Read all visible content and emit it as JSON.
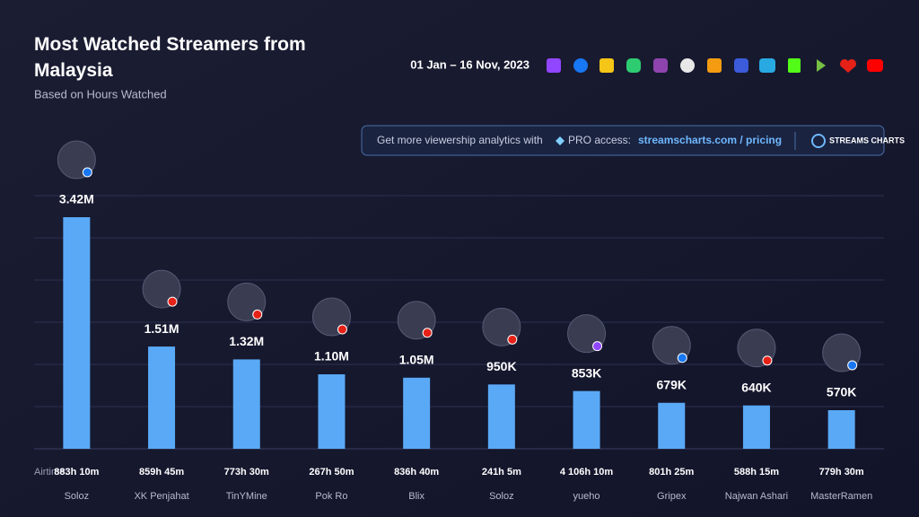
{
  "chart_data": {
    "type": "bar",
    "title": "Most Watched Streamers from Malaysia",
    "subtitle": "Based on Hours Watched",
    "date_range": "01 Jan – 16 Nov, 2023",
    "banner": {
      "text": "Get more viewership analytics with",
      "pro": "PRO access:",
      "link": "streamscharts.com / pricing",
      "logo": "STREAMS CHARTS"
    },
    "categories": [
      "Soloz",
      "XK Penjahat",
      "TinYMine",
      "Pok Ro",
      "Blix",
      "Soloz",
      "yueho",
      "Gripex",
      "Najwan Ashari",
      "MasterRamen"
    ],
    "values": [
      3420000,
      1510000,
      1320000,
      1100000,
      1050000,
      950000,
      853000,
      679000,
      640000,
      570000
    ],
    "value_labels": [
      "3.42M",
      "1.51M",
      "1.32M",
      "1.10M",
      "1.05M",
      "950K",
      "853K",
      "679K",
      "640K",
      "570K"
    ],
    "airtime_label": "Airtime:",
    "airtime": [
      "883h 10m",
      "859h 45m",
      "773h 30m",
      "267h 50m",
      "836h 40m",
      "241h 5m",
      "4 106h 10m",
      "801h 25m",
      "588h 15m",
      "779h 30m"
    ],
    "color": "#5aa9f6"
  }
}
